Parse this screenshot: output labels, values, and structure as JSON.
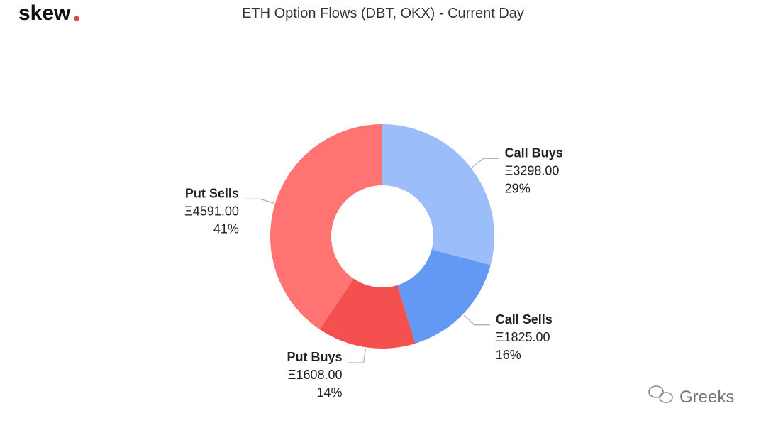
{
  "logo": "skew",
  "watermark": "Greeks",
  "chart_data": {
    "type": "donut",
    "title": "ETH Option Flows (DBT, OKX) - Current Day",
    "categories": [
      "Call Buys",
      "Call Sells",
      "Put Buys",
      "Put Sells"
    ],
    "values": [
      3298,
      1825,
      1608,
      4591
    ],
    "value_labels": [
      "Ξ3298.00",
      "Ξ1825.00",
      "Ξ1608.00",
      "Ξ4591.00"
    ],
    "percent_labels": [
      "29%",
      "16%",
      "14%",
      "41%"
    ],
    "colors": [
      "#9bbdfa",
      "#6399f5",
      "#f55050",
      "#ff7373"
    ]
  }
}
